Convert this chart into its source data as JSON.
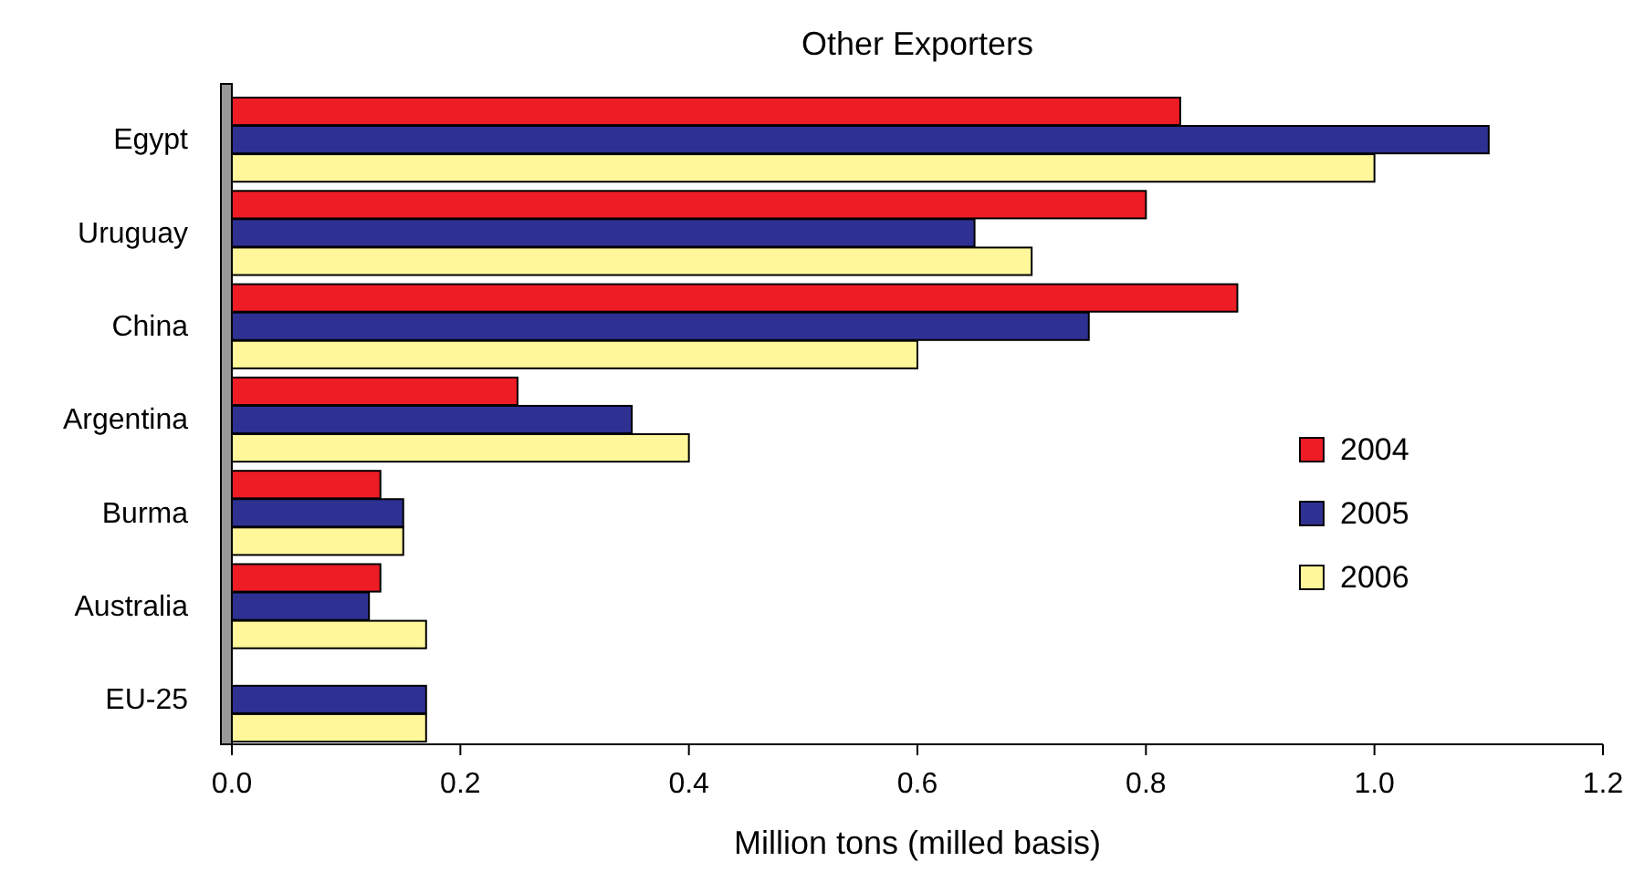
{
  "chart_data": {
    "type": "bar",
    "orientation": "horizontal",
    "title": "Other Exporters",
    "xlabel": "Million tons (milled basis)",
    "categories": [
      "Egypt",
      "Uruguay",
      "China",
      "Argentina",
      "Burma",
      "Australia",
      "EU-25"
    ],
    "series": [
      {
        "name": "2004",
        "color": "#ee1c25",
        "values": [
          0.83,
          0.8,
          0.88,
          0.25,
          0.13,
          0.13,
          null
        ]
      },
      {
        "name": "2005",
        "color": "#2e3192",
        "values": [
          1.1,
          0.65,
          0.75,
          0.35,
          0.15,
          0.12,
          0.17
        ]
      },
      {
        "name": "2006",
        "color": "#fff799",
        "values": [
          1.0,
          0.7,
          0.6,
          0.4,
          0.15,
          0.17,
          0.17
        ]
      }
    ],
    "xlim": [
      0,
      1.2
    ],
    "xticks": [
      {
        "value": 0,
        "label": "0.0"
      },
      0.2,
      0.4,
      0.6,
      0.8,
      {
        "value": 1,
        "label": "1.0"
      },
      {
        "value": 1.2,
        "label": "1.2"
      }
    ],
    "grid": false,
    "legend": "right"
  }
}
